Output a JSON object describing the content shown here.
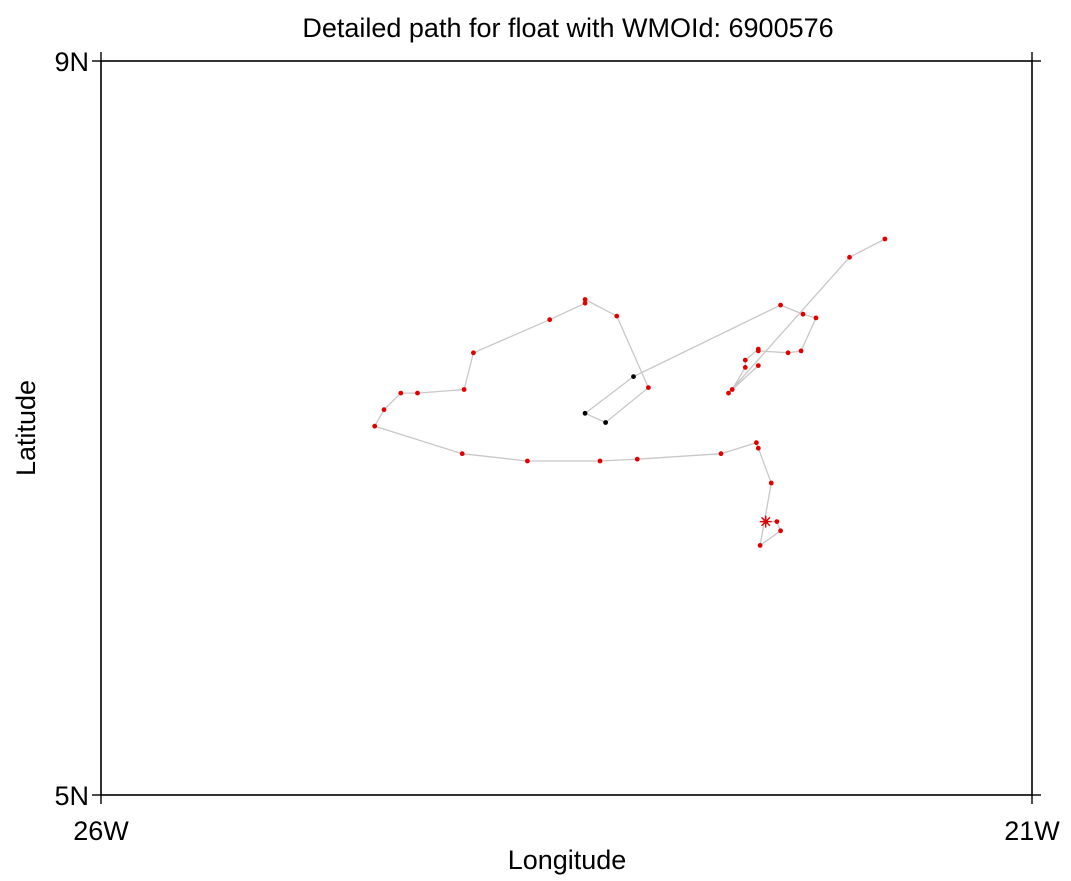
{
  "chart_data": {
    "type": "scatter",
    "title": "Detailed path for float with WMOId: 6900576",
    "xlabel": "Longitude",
    "ylabel": "Latitude",
    "xlim": [
      -26,
      -21
    ],
    "ylim": [
      5,
      9
    ],
    "x_ticks": [
      {
        "value": -26,
        "label": "26W"
      },
      {
        "value": -21,
        "label": "21W"
      }
    ],
    "y_ticks": [
      {
        "value": 5,
        "label": "5N"
      },
      {
        "value": 9,
        "label": "9N"
      }
    ],
    "grid": false,
    "colors": {
      "path_line": "#c8c8c8",
      "positions": "#e00000",
      "interpolated_positions": "#000000",
      "start_marker": "#e00000",
      "axes": "#000000"
    },
    "start": {
      "x": -22.43,
      "y": 6.49,
      "marker": "asterisk"
    },
    "series": [
      {
        "marker": "dot",
        "points": [
          {
            "x": -22.43,
            "y": 6.49,
            "status": "measured"
          },
          {
            "x": -22.37,
            "y": 6.49,
            "status": "measured"
          },
          {
            "x": -22.35,
            "y": 6.44,
            "status": "measured"
          },
          {
            "x": -22.46,
            "y": 6.36,
            "status": "measured"
          },
          {
            "x": -22.4,
            "y": 6.7,
            "status": "measured"
          },
          {
            "x": -22.47,
            "y": 6.89,
            "status": "measured"
          },
          {
            "x": -22.48,
            "y": 6.92,
            "status": "measured"
          },
          {
            "x": -22.67,
            "y": 6.86,
            "status": "measured"
          },
          {
            "x": -23.12,
            "y": 6.83,
            "status": "measured"
          },
          {
            "x": -23.32,
            "y": 6.82,
            "status": "measured"
          },
          {
            "x": -23.71,
            "y": 6.82,
            "status": "measured"
          },
          {
            "x": -24.06,
            "y": 6.86,
            "status": "measured"
          },
          {
            "x": -24.53,
            "y": 7.01,
            "status": "measured"
          },
          {
            "x": -24.48,
            "y": 7.1,
            "status": "measured"
          },
          {
            "x": -24.39,
            "y": 7.19,
            "status": "measured"
          },
          {
            "x": -24.3,
            "y": 7.19,
            "status": "measured"
          },
          {
            "x": -24.05,
            "y": 7.21,
            "status": "measured"
          },
          {
            "x": -24.0,
            "y": 7.41,
            "status": "measured"
          },
          {
            "x": -23.59,
            "y": 7.59,
            "status": "measured"
          },
          {
            "x": -23.4,
            "y": 7.68,
            "status": "measured"
          },
          {
            "x": -23.4,
            "y": 7.7,
            "status": "measured"
          },
          {
            "x": -23.23,
            "y": 7.61,
            "status": "measured"
          },
          {
            "x": -23.06,
            "y": 7.22,
            "status": "measured"
          },
          {
            "x": -23.29,
            "y": 7.03,
            "status": "interpolated"
          },
          {
            "x": -23.4,
            "y": 7.08,
            "status": "interpolated"
          },
          {
            "x": -23.14,
            "y": 7.28,
            "status": "interpolated"
          },
          {
            "x": -22.35,
            "y": 7.67,
            "status": "measured"
          },
          {
            "x": -22.23,
            "y": 7.62,
            "status": "measured"
          },
          {
            "x": -22.16,
            "y": 7.6,
            "status": "measured"
          },
          {
            "x": -22.24,
            "y": 7.42,
            "status": "measured"
          },
          {
            "x": -22.31,
            "y": 7.41,
            "status": "measured"
          },
          {
            "x": -22.47,
            "y": 7.42,
            "status": "measured"
          },
          {
            "x": -22.47,
            "y": 7.43,
            "status": "measured"
          },
          {
            "x": -22.54,
            "y": 7.37,
            "status": "measured"
          },
          {
            "x": -22.54,
            "y": 7.33,
            "status": "measured"
          },
          {
            "x": -22.61,
            "y": 7.21,
            "status": "measured"
          },
          {
            "x": -22.47,
            "y": 7.34,
            "status": "measured"
          },
          {
            "x": -22.63,
            "y": 7.19,
            "status": "measured"
          },
          {
            "x": -21.98,
            "y": 7.93,
            "status": "measured"
          },
          {
            "x": -21.79,
            "y": 8.03,
            "status": "measured"
          }
        ]
      }
    ]
  }
}
